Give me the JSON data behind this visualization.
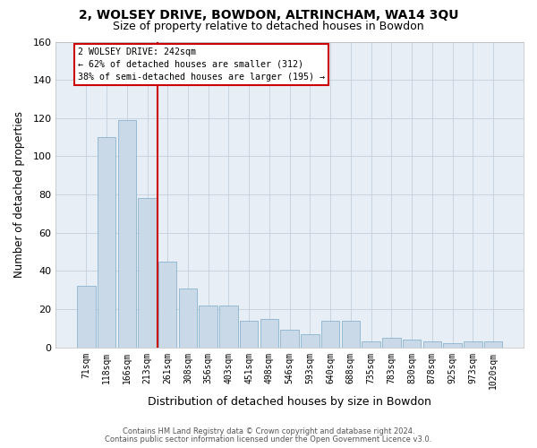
{
  "title1": "2, WOLSEY DRIVE, BOWDON, ALTRINCHAM, WA14 3QU",
  "title2": "Size of property relative to detached houses in Bowdon",
  "xlabel": "Distribution of detached houses by size in Bowdon",
  "ylabel": "Number of detached properties",
  "footer1": "Contains HM Land Registry data © Crown copyright and database right 2024.",
  "footer2": "Contains public sector information licensed under the Open Government Licence v3.0.",
  "categories": [
    "71sqm",
    "118sqm",
    "166sqm",
    "213sqm",
    "261sqm",
    "308sqm",
    "356sqm",
    "403sqm",
    "451sqm",
    "498sqm",
    "546sqm",
    "593sqm",
    "640sqm",
    "688sqm",
    "735sqm",
    "783sqm",
    "830sqm",
    "878sqm",
    "925sqm",
    "973sqm",
    "1020sqm"
  ],
  "values": [
    32,
    110,
    119,
    78,
    45,
    31,
    22,
    22,
    14,
    15,
    9,
    7,
    14,
    14,
    3,
    5,
    4,
    3,
    2,
    3,
    3
  ],
  "bar_color": "#c9d9e8",
  "bar_edge_color": "#7aaac8",
  "grid_color": "#c8d4e0",
  "background_color": "#e8eef5",
  "vline_x": 3.5,
  "vline_color": "#cc0000",
  "annotation_line1": "2 WOLSEY DRIVE: 242sqm",
  "annotation_line2": "← 62% of detached houses are smaller (312)",
  "annotation_line3": "38% of semi-detached houses are larger (195) →",
  "ylim": [
    0,
    160
  ],
  "yticks": [
    0,
    20,
    40,
    60,
    80,
    100,
    120,
    140,
    160
  ]
}
